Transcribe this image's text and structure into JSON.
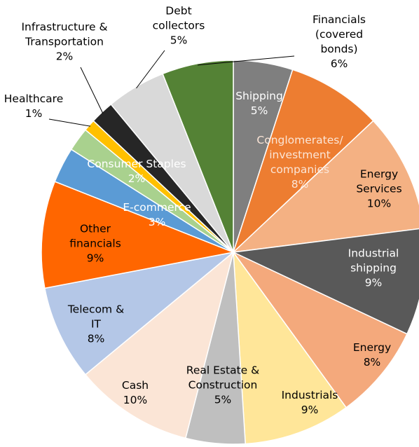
{
  "chart_data": {
    "type": "pie",
    "categories": [
      "Shipping",
      "Conglomerates/\ninvestment\ncompanies",
      "Energy\nServices",
      "Industrial\nshipping",
      "Energy",
      "Industrials",
      "Real Estate &\nConstruction",
      "Cash",
      "Telecom &\nIT",
      "Other\nfinancials",
      "E-commerce",
      "Consumer Staples",
      "Healthcare",
      "Infrastructure &\nTransportation",
      "Debt\ncollectors",
      "Financials (covered bonds)"
    ],
    "values": [
      5,
      8,
      10,
      9,
      8,
      9,
      5,
      10,
      8,
      9,
      3,
      2,
      1,
      2,
      5,
      6
    ],
    "value_labels": [
      "5%",
      "8%",
      "10%",
      "9%",
      "8%",
      "9%",
      "5%",
      "10%",
      "8%",
      "9%",
      "3%",
      "2%",
      "1%",
      "2%",
      "5%",
      "6%"
    ],
    "colors": [
      "#7f7f7f",
      "#ed7d31",
      "#f4b183",
      "#595959",
      "#f4a97c",
      "#ffe699",
      "#bfbfbf",
      "#fbe5d6",
      "#b4c7e7",
      "#ff6600",
      "#5b9bd5",
      "#a9d18e",
      "#ffc000",
      "#262626",
      "#d9d9d9",
      "#548235"
    ]
  }
}
